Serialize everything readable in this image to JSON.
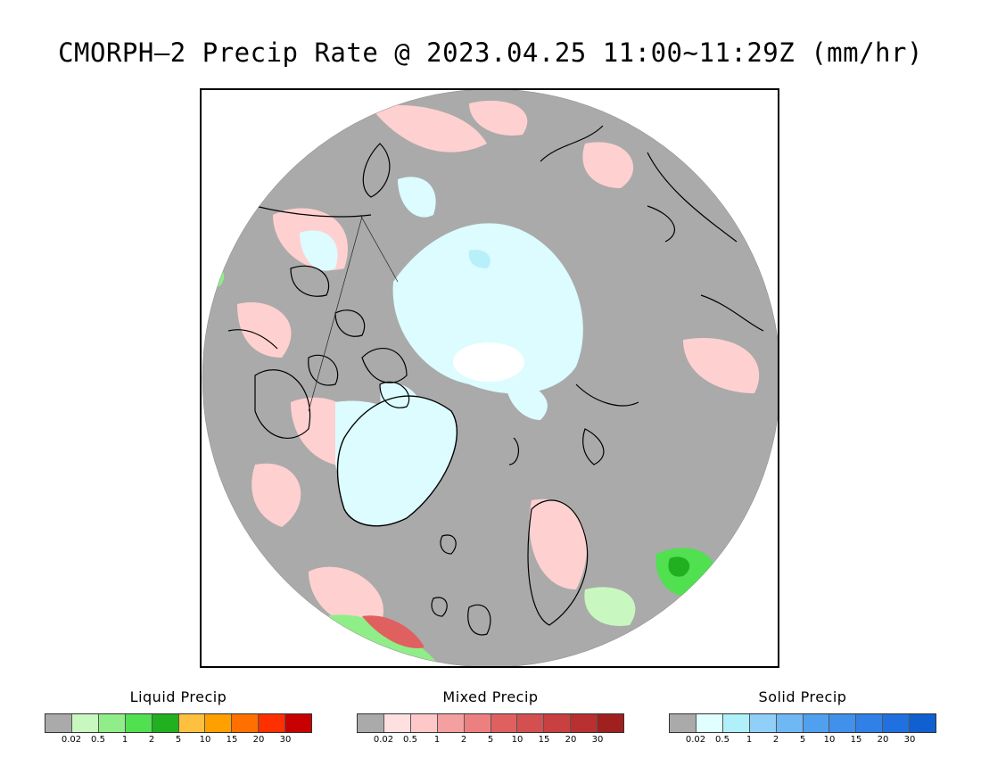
{
  "title": "CMORPH–2 Precip Rate @ 2023.04.25 11:00~11:29Z (mm/hr)",
  "map": {
    "projection": "north-polar-stereographic",
    "background_color": "#aaaaaa",
    "coastline_color": "#000000"
  },
  "legends": [
    {
      "title": "Liquid Precip",
      "colors": [
        "#aaaaaa",
        "#c8f8c0",
        "#90ee88",
        "#50e050",
        "#20b020",
        "#ffc040",
        "#ffa000",
        "#ff7000",
        "#ff3000",
        "#c80000"
      ],
      "ticks": [
        "0.02",
        "0.5",
        "1",
        "2",
        "5",
        "10",
        "15",
        "20",
        "30"
      ]
    },
    {
      "title": "Mixed Precip",
      "colors": [
        "#aaaaaa",
        "#ffe0e0",
        "#ffc8c8",
        "#f4a0a0",
        "#ec8080",
        "#e06060",
        "#d45050",
        "#c84040",
        "#b83030",
        "#a02020"
      ],
      "ticks": [
        "0.02",
        "0.5",
        "1",
        "2",
        "5",
        "10",
        "15",
        "20",
        "30"
      ]
    },
    {
      "title": "Solid Precip",
      "colors": [
        "#aaaaaa",
        "#e0ffff",
        "#b0f0fa",
        "#90d0f8",
        "#70b8f4",
        "#50a0f0",
        "#4090ec",
        "#3080e8",
        "#2070e0",
        "#1060d0"
      ],
      "ticks": [
        "0.02",
        "0.5",
        "1",
        "2",
        "5",
        "10",
        "15",
        "20",
        "30"
      ]
    }
  ]
}
